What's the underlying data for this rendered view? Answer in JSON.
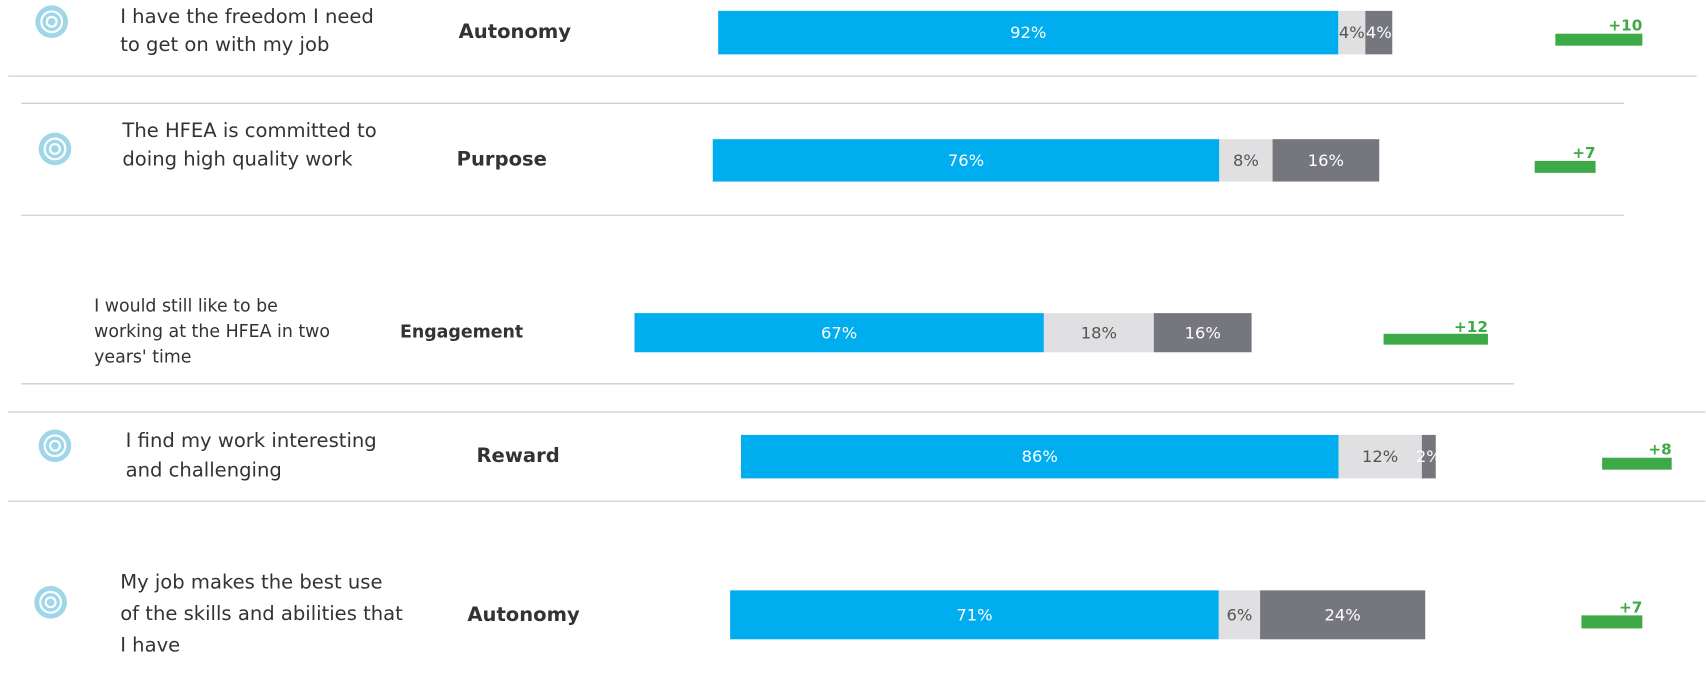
{
  "rows": [
    {
      "statement": [
        "I have the freedom I need",
        "to get on with my job"
      ],
      "theme": "Autonomy",
      "values": [
        92,
        4,
        4
      ],
      "value_labels": [
        "92%",
        "4%",
        "4%"
      ],
      "change": 10,
      "change_label": "+10"
    },
    {
      "statement": [
        "The HFEA is committed to",
        "doing high quality work"
      ],
      "theme": "Purpose",
      "values": [
        76,
        8,
        16
      ],
      "value_labels": [
        "76%",
        "8%",
        "16%"
      ],
      "change": 7,
      "change_label": "+7"
    },
    {
      "statement": [
        "I would still like to be",
        "working at the HFEA in two",
        "years' time"
      ],
      "theme": "Engagement",
      "values": [
        67,
        18,
        16
      ],
      "value_labels": [
        "67%",
        "18%",
        "16%"
      ],
      "change": 12,
      "change_label": "+12"
    },
    {
      "statement": [
        "I find my work interesting",
        "and challenging"
      ],
      "theme": "Reward",
      "values": [
        86,
        12,
        2
      ],
      "value_labels": [
        "86%",
        "12%",
        "2%"
      ],
      "change": 8,
      "change_label": "+8"
    },
    {
      "statement": [
        "My job makes the best use",
        "of the skills and abilities that",
        "I have"
      ],
      "theme": "Autonomy",
      "values": [
        71,
        6,
        24
      ],
      "value_labels": [
        "71%",
        "6%",
        "24%"
      ],
      "change": 7,
      "change_label": "+7"
    }
  ],
  "colors": [
    "#00aeef",
    "#e0e0e2",
    "#76777e"
  ],
  "change_color": "#3daa47"
}
